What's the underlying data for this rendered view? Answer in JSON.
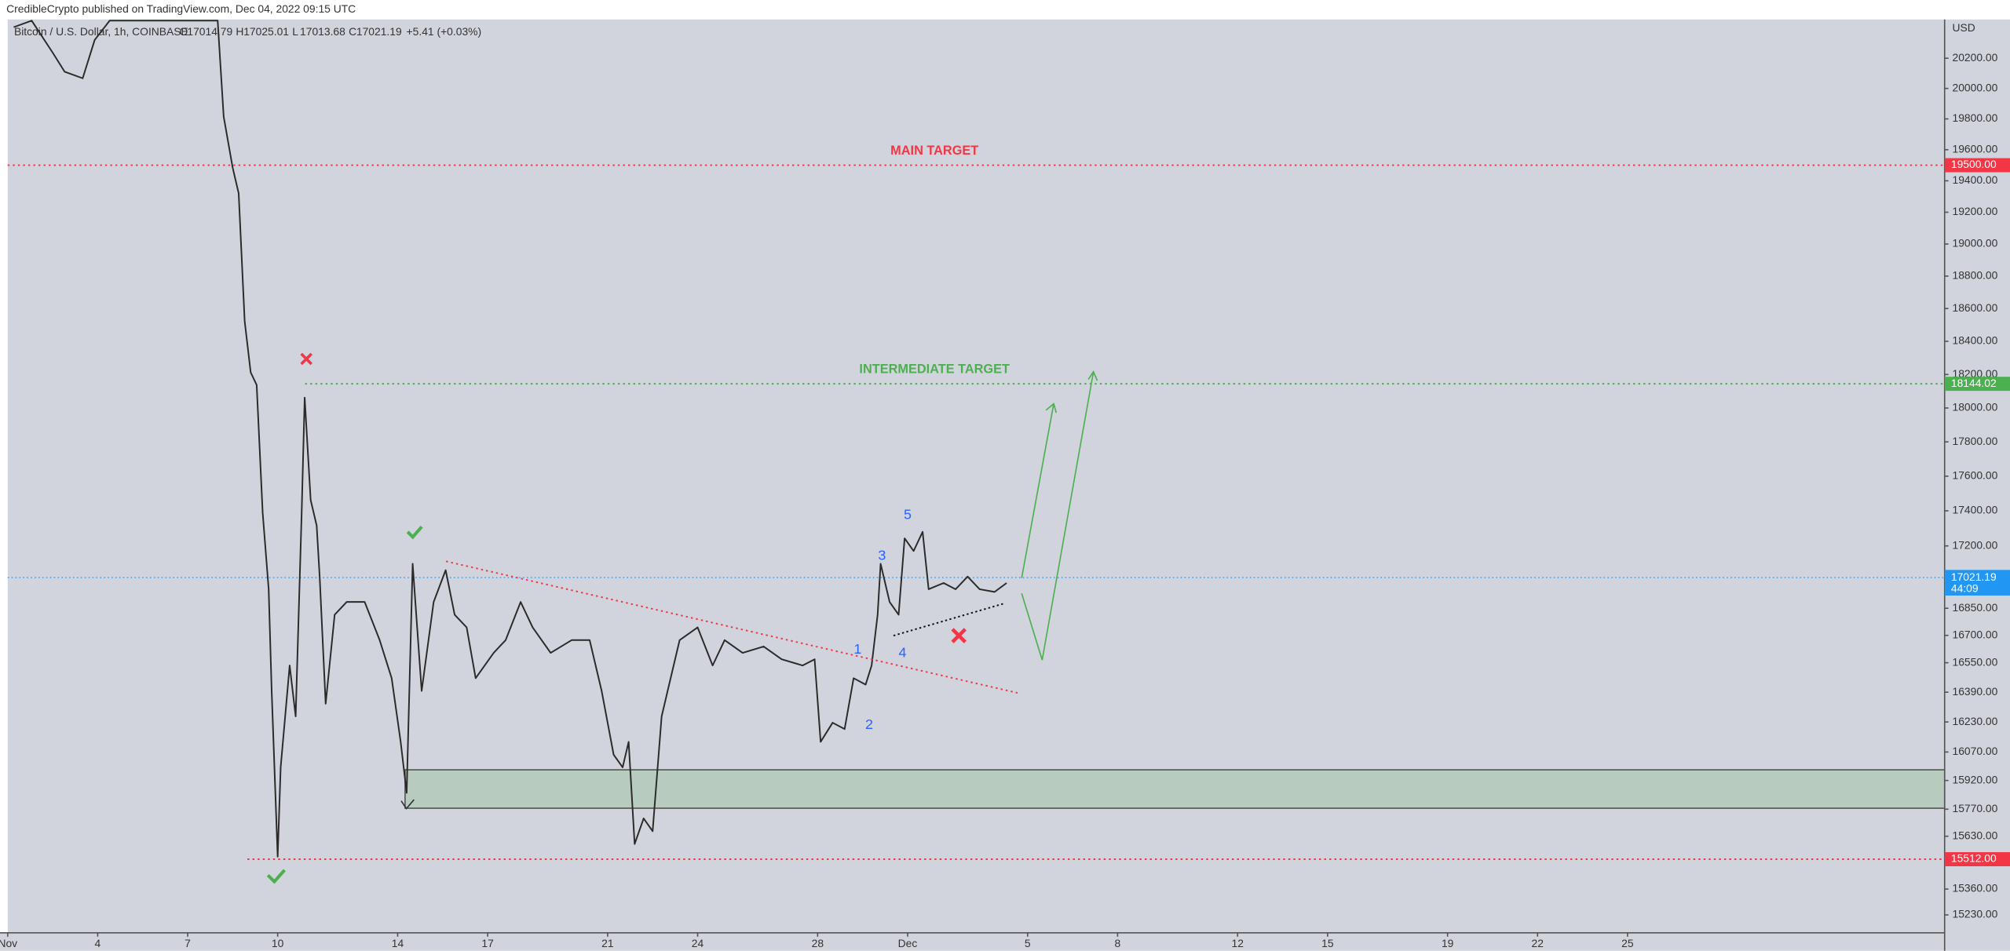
{
  "header": "CredibleCrypto published on TradingView.com, Dec 04, 2022 09:15 UTC",
  "chart_data": {
    "type": "line",
    "title": "Bitcoin / U.S. Dollar, 1h, COINBASE",
    "ohlc": {
      "labels": [
        "O",
        "H",
        "L",
        "C"
      ],
      "values": [
        17014.79,
        17025.01,
        17013.68,
        17021.19
      ]
    },
    "change": "+5.41 (+0.03%)",
    "currency": "USD",
    "countdown": "44:09",
    "log_scale": true,
    "x": [
      0.2,
      0.8,
      1.5,
      1.9,
      2.5,
      2.9,
      3.4,
      7.0,
      7.2,
      7.5,
      7.7,
      7.9,
      8.1,
      8.3,
      8.5,
      8.7,
      8.8,
      9.0,
      9.1,
      9.4,
      9.6,
      9.8,
      9.9,
      10.1,
      10.3,
      10.4,
      10.6,
      10.9,
      11.3,
      11.9,
      12.4,
      12.8,
      13.1,
      13.3,
      13.5,
      13.8,
      14.2,
      14.6,
      14.9,
      15.3,
      15.6,
      16.2,
      16.6,
      17.1,
      17.5,
      18.1,
      18.8,
      19.4,
      19.8,
      20.2,
      20.5,
      20.7,
      20.9,
      21.2,
      21.5,
      21.8,
      22.0,
      22.4,
      23.0,
      23.5,
      23.9,
      24.5,
      25.2,
      25.8,
      26.5,
      26.9,
      27.1,
      27.5,
      27.9,
      28.2,
      28.6,
      28.8,
      29.0,
      29.1,
      29.4,
      29.7,
      29.9,
      30.2,
      30.5,
      30.7,
      31.2,
      31.6,
      32.0,
      32.4,
      32.9,
      33.3
    ],
    "series": [
      {
        "color": "#2a2a2a",
        "values": [
          20408,
          20452,
          20237,
          20110,
          20067,
          20322,
          20452,
          20452,
          19815,
          19484,
          19320,
          18523,
          18213,
          18137,
          17389,
          16956,
          16397,
          15525,
          15989,
          16535,
          16260,
          17389,
          18062,
          17462,
          17316,
          17027,
          16328,
          16814,
          16885,
          16885,
          16674,
          16466,
          16124,
          15855,
          17099,
          16397,
          16885,
          17063,
          16814,
          16744,
          16466,
          16604,
          16674,
          16885,
          16744,
          16604,
          16674,
          16674,
          16397,
          16056,
          15989,
          16124,
          15590,
          15722,
          15656,
          16260,
          16397,
          16674,
          16744,
          16535,
          16674,
          16604,
          16639,
          16569,
          16535,
          16569,
          16124,
          16226,
          16192,
          16466,
          16431,
          16535,
          16814,
          17099,
          16885,
          16814,
          17243,
          17171,
          17280,
          16956,
          16991,
          16956,
          17027,
          16956,
          16941,
          16991
        ]
      }
    ],
    "xlim": [
      0,
      64.57
    ],
    "ylim": [
      15140,
      20460
    ],
    "xticks": [
      {
        "value": 0,
        "label": "Nov"
      },
      {
        "value": 3,
        "label": "4"
      },
      {
        "value": 6,
        "label": "7"
      },
      {
        "value": 9,
        "label": "10"
      },
      {
        "value": 13,
        "label": "14"
      },
      {
        "value": 16,
        "label": "17"
      },
      {
        "value": 20,
        "label": "21"
      },
      {
        "value": 23,
        "label": "24"
      },
      {
        "value": 27,
        "label": "28"
      },
      {
        "value": 30,
        "label": "Dec"
      },
      {
        "value": 34,
        "label": "5"
      },
      {
        "value": 37,
        "label": "8"
      },
      {
        "value": 41,
        "label": "12"
      },
      {
        "value": 44,
        "label": "15"
      },
      {
        "value": 48,
        "label": "19"
      },
      {
        "value": 51,
        "label": "22"
      },
      {
        "value": 54,
        "label": "25"
      }
    ],
    "yticks": [
      {
        "value": 20200,
        "label": "20200.00"
      },
      {
        "value": 20000,
        "label": "20000.00"
      },
      {
        "value": 19800,
        "label": "19800.00"
      },
      {
        "value": 19600,
        "label": "19600.00"
      },
      {
        "value": 19400,
        "label": "19400.00"
      },
      {
        "value": 19200,
        "label": "19200.00"
      },
      {
        "value": 19000,
        "label": "19000.00"
      },
      {
        "value": 18800,
        "label": "18800.00"
      },
      {
        "value": 18600,
        "label": "18600.00"
      },
      {
        "value": 18400,
        "label": "18400.00"
      },
      {
        "value": 18200,
        "label": "18200.00"
      },
      {
        "value": 18000,
        "label": "18000.00"
      },
      {
        "value": 17800,
        "label": "17800.00"
      },
      {
        "value": 17600,
        "label": "17600.00"
      },
      {
        "value": 17400,
        "label": "17400.00"
      },
      {
        "value": 17200,
        "label": "17200.00"
      },
      {
        "value": 16850,
        "label": "16850.00"
      },
      {
        "value": 16700,
        "label": "16700.00"
      },
      {
        "value": 16550,
        "label": "16550.00"
      },
      {
        "value": 16390,
        "label": "16390.00"
      },
      {
        "value": 16230,
        "label": "16230.00"
      },
      {
        "value": 16070,
        "label": "16070.00"
      },
      {
        "value": 15920,
        "label": "15920.00"
      },
      {
        "value": 15770,
        "label": "15770.00"
      },
      {
        "value": 15630,
        "label": "15630.00"
      },
      {
        "value": 15360,
        "label": "15360.00"
      },
      {
        "value": 15230,
        "label": "15230.00"
      }
    ],
    "levels": [
      {
        "value": 19500,
        "label": "19500.00",
        "color": "#f23645",
        "annotation": "MAIN TARGET"
      },
      {
        "value": 18144.02,
        "label": "18144.02",
        "color": "#4caf50",
        "annotation": "INTERMEDIATE TARGET"
      },
      {
        "value": 15512,
        "label": "15512.00",
        "color": "#f23645"
      }
    ],
    "current": {
      "value": 17021.19,
      "label": "17021.19",
      "color": "#2196f3"
    },
    "zone": {
      "low": 15775,
      "high": 15976,
      "color": "#b7ccbf"
    },
    "wave_labels": [
      "1",
      "2",
      "3",
      "4",
      "5"
    ]
  }
}
